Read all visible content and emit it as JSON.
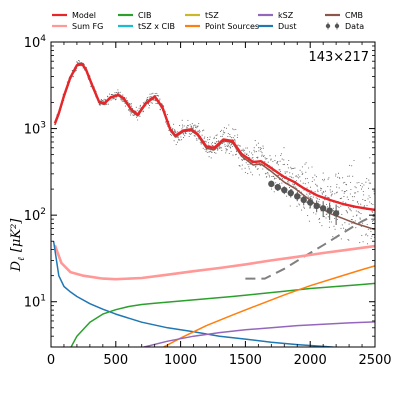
{
  "chart_data": {
    "type": "line",
    "annotation": "143×217",
    "xlabel": "",
    "ylabel_tex": {
      "base": "D",
      "sub": "ℓ",
      "unit": "[μK²]"
    },
    "xlim": [
      0,
      2500
    ],
    "ylim": [
      3,
      10000
    ],
    "yscale": "log",
    "x_ticks": [
      0,
      500,
      1000,
      1500,
      2000,
      2500
    ],
    "y_ticks": [
      {
        "value": 10,
        "base": "10",
        "exp": "1"
      },
      {
        "value": 100,
        "base": "10",
        "exp": "2"
      },
      {
        "value": 1000,
        "base": "10",
        "exp": "3"
      },
      {
        "value": 10000,
        "base": "10",
        "exp": "4"
      }
    ],
    "legend": [
      {
        "label": "Model",
        "color": "#e8262a",
        "kind": "line"
      },
      {
        "label": "CIB",
        "color": "#2ca02c",
        "kind": "line"
      },
      {
        "label": "tSZ",
        "color": "#c9b829",
        "kind": "line"
      },
      {
        "label": "kSZ",
        "color": "#9467bd",
        "kind": "line"
      },
      {
        "label": "CMB",
        "color": "#8c564b",
        "kind": "line"
      },
      {
        "label": "Sum FG",
        "color": "#ff9896",
        "kind": "line"
      },
      {
        "label": "tSZ x CIB",
        "color": "#17becf",
        "kind": "line"
      },
      {
        "label": "Point Sources",
        "color": "#ff7f0e",
        "kind": "line"
      },
      {
        "label": "Dust",
        "color": "#1f77b4",
        "kind": "line"
      },
      {
        "label": "Data",
        "color": "#555555",
        "kind": "marker"
      }
    ],
    "series": [
      {
        "name": "CMB",
        "color": "#8c564b",
        "width": 1.5,
        "points": [
          [
            30,
            1100
          ],
          [
            60,
            1450
          ],
          [
            100,
            2300
          ],
          [
            150,
            3800
          ],
          [
            200,
            5300
          ],
          [
            240,
            5500
          ],
          [
            270,
            4700
          ],
          [
            320,
            3000
          ],
          [
            370,
            2000
          ],
          [
            410,
            1900
          ],
          [
            460,
            2250
          ],
          [
            520,
            2400
          ],
          [
            560,
            2200
          ],
          [
            620,
            1600
          ],
          [
            670,
            1400
          ],
          [
            730,
            1900
          ],
          [
            800,
            2300
          ],
          [
            860,
            1700
          ],
          [
            920,
            950
          ],
          [
            960,
            800
          ],
          [
            1020,
            920
          ],
          [
            1080,
            950
          ],
          [
            1130,
            840
          ],
          [
            1200,
            590
          ],
          [
            1260,
            570
          ],
          [
            1330,
            720
          ],
          [
            1400,
            690
          ],
          [
            1470,
            480
          ],
          [
            1560,
            380
          ],
          [
            1620,
            390
          ],
          [
            1700,
            320
          ],
          [
            1800,
            240
          ],
          [
            1880,
            205
          ],
          [
            1950,
            170
          ],
          [
            2050,
            130
          ],
          [
            2150,
            105
          ],
          [
            2250,
            92
          ],
          [
            2350,
            80
          ],
          [
            2450,
            72
          ],
          [
            2500,
            68
          ]
        ]
      },
      {
        "name": "Model",
        "color": "#e8262a",
        "width": 2.4,
        "points": [
          [
            30,
            1150
          ],
          [
            60,
            1500
          ],
          [
            100,
            2400
          ],
          [
            150,
            3900
          ],
          [
            200,
            5400
          ],
          [
            240,
            5600
          ],
          [
            270,
            4800
          ],
          [
            320,
            3100
          ],
          [
            370,
            2050
          ],
          [
            410,
            1950
          ],
          [
            460,
            2300
          ],
          [
            520,
            2450
          ],
          [
            560,
            2250
          ],
          [
            620,
            1650
          ],
          [
            670,
            1450
          ],
          [
            730,
            1950
          ],
          [
            800,
            2350
          ],
          [
            860,
            1750
          ],
          [
            920,
            980
          ],
          [
            960,
            830
          ],
          [
            1020,
            950
          ],
          [
            1080,
            980
          ],
          [
            1130,
            870
          ],
          [
            1200,
            620
          ],
          [
            1260,
            600
          ],
          [
            1330,
            750
          ],
          [
            1400,
            720
          ],
          [
            1470,
            510
          ],
          [
            1560,
            410
          ],
          [
            1620,
            420
          ],
          [
            1700,
            350
          ],
          [
            1800,
            275
          ],
          [
            1880,
            240
          ],
          [
            1950,
            205
          ],
          [
            2050,
            170
          ],
          [
            2150,
            150
          ],
          [
            2250,
            135
          ],
          [
            2350,
            125
          ],
          [
            2450,
            118
          ],
          [
            2500,
            115
          ]
        ]
      },
      {
        "name": "Sum FG",
        "color": "#ff9896",
        "width": 2.6,
        "points": [
          [
            30,
            45
          ],
          [
            80,
            28
          ],
          [
            150,
            22
          ],
          [
            250,
            20
          ],
          [
            400,
            18.5
          ],
          [
            500,
            18.2
          ],
          [
            700,
            18.8
          ],
          [
            900,
            20.5
          ],
          [
            1100,
            22.5
          ],
          [
            1300,
            24.5
          ],
          [
            1500,
            27
          ],
          [
            1700,
            30
          ],
          [
            1900,
            33
          ],
          [
            2100,
            36.5
          ],
          [
            2300,
            40
          ],
          [
            2500,
            44
          ]
        ]
      },
      {
        "name": "Dust",
        "color": "#1f77b4",
        "width": 1.5,
        "points": [
          [
            20,
            50
          ],
          [
            60,
            20
          ],
          [
            100,
            15
          ],
          [
            150,
            13
          ],
          [
            200,
            11.5
          ],
          [
            300,
            9.5
          ],
          [
            400,
            8.2
          ],
          [
            500,
            7.2
          ],
          [
            700,
            5.8
          ],
          [
            900,
            5
          ],
          [
            1100,
            4.5
          ],
          [
            1300,
            4
          ],
          [
            1500,
            3.7
          ],
          [
            1700,
            3.4
          ],
          [
            1900,
            3.2
          ],
          [
            2100,
            3.05
          ],
          [
            2300,
            2.9
          ],
          [
            2500,
            2.8
          ]
        ]
      },
      {
        "name": "CIB",
        "color": "#2ca02c",
        "width": 1.5,
        "points": [
          [
            150,
            2.9
          ],
          [
            200,
            4
          ],
          [
            300,
            5.8
          ],
          [
            400,
            7.2
          ],
          [
            500,
            8.1
          ],
          [
            600,
            8.8
          ],
          [
            700,
            9.3
          ],
          [
            800,
            9.6
          ],
          [
            1000,
            10.2
          ],
          [
            1200,
            10.8
          ],
          [
            1400,
            11.5
          ],
          [
            1600,
            12.3
          ],
          [
            1800,
            13.2
          ],
          [
            2000,
            14.2
          ],
          [
            2200,
            15
          ],
          [
            2400,
            15.8
          ],
          [
            2500,
            16.3
          ]
        ]
      },
      {
        "name": "Point Sources",
        "color": "#ff7f0e",
        "width": 1.5,
        "points": [
          [
            850,
            2.9
          ],
          [
            1000,
            3.8
          ],
          [
            1200,
            5.3
          ],
          [
            1400,
            7
          ],
          [
            1600,
            9.2
          ],
          [
            1800,
            12
          ],
          [
            2000,
            15.3
          ],
          [
            2200,
            19
          ],
          [
            2400,
            23.5
          ],
          [
            2500,
            26
          ]
        ]
      },
      {
        "name": "kSZ",
        "color": "#9467bd",
        "width": 1.5,
        "points": [
          [
            700,
            2.95
          ],
          [
            900,
            3.5
          ],
          [
            1100,
            4
          ],
          [
            1300,
            4.4
          ],
          [
            1500,
            4.75
          ],
          [
            1700,
            5
          ],
          [
            1900,
            5.3
          ],
          [
            2100,
            5.5
          ],
          [
            2300,
            5.7
          ],
          [
            2500,
            5.85
          ]
        ]
      },
      {
        "name": "Sky residual",
        "color": "#808080",
        "width": 2,
        "dash": "10,6",
        "points": [
          [
            1500,
            18.5
          ],
          [
            1650,
            18.5
          ],
          [
            1800,
            24
          ],
          [
            1950,
            33
          ],
          [
            2100,
            45
          ],
          [
            2250,
            62
          ],
          [
            2400,
            85
          ],
          [
            2500,
            100
          ]
        ]
      }
    ],
    "data_points": [
      [
        1700,
        230
      ],
      [
        1750,
        210
      ],
      [
        1800,
        195
      ],
      [
        1850,
        180
      ],
      [
        1900,
        165
      ],
      [
        1950,
        150
      ],
      [
        2000,
        140
      ],
      [
        2050,
        128
      ],
      [
        2100,
        120
      ],
      [
        2150,
        113
      ],
      [
        2200,
        105
      ]
    ],
    "data_errors": [
      20,
      20,
      20,
      20,
      20,
      20,
      20,
      20,
      25,
      25,
      28
    ]
  }
}
